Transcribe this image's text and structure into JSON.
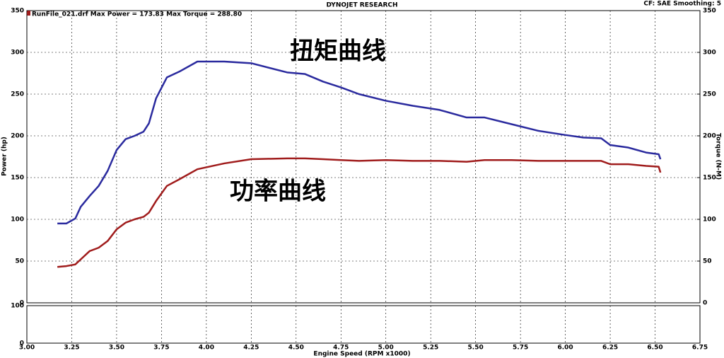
{
  "chart_data": {
    "type": "line",
    "title": "DYNOJET RESEARCH",
    "subtitle": "RunFile_021.drf Max Power = 173.83   Max Torque = 288.80",
    "settings_text": "CF: SAE  Smoothing: 5",
    "x_label": "Engine Speed (RPM x1000)",
    "y_label": "Power (hp)",
    "y2_label": "Torque (N-M)",
    "annotations": [
      "扭矩曲线",
      "功率曲线"
    ],
    "xlim": [
      3,
      6.75
    ],
    "xticks": [
      {
        "value": 3,
        "label": "3.00"
      },
      {
        "value": 3.25,
        "label": "3.25"
      },
      {
        "value": 3.5,
        "label": "3.50"
      },
      {
        "value": 3.75,
        "label": "3.75"
      },
      {
        "value": 4,
        "label": "4.00"
      },
      {
        "value": 4.25,
        "label": "4.25"
      },
      {
        "value": 4.5,
        "label": "4.50"
      },
      {
        "value": 4.75,
        "label": "4.75"
      },
      {
        "value": 5,
        "label": "5.00"
      },
      {
        "value": 5.25,
        "label": "5.25"
      },
      {
        "value": 5.5,
        "label": "5.50"
      },
      {
        "value": 5.75,
        "label": "5.75"
      },
      {
        "value": 6,
        "label": "6.00"
      },
      {
        "value": 6.25,
        "label": "6.25"
      },
      {
        "value": 6.5,
        "label": "6.50"
      },
      {
        "value": 6.75,
        "label": "6.75"
      }
    ],
    "ylim": [
      0,
      350
    ],
    "yticks": [
      0,
      50,
      100,
      150,
      200,
      250,
      300,
      350
    ],
    "y2lim": [
      0,
      350
    ],
    "y2ticks": [
      0,
      50,
      100,
      150,
      200,
      250,
      300,
      350
    ],
    "lower_ylim": [
      0,
      100
    ],
    "lower_yticks": [
      0,
      100
    ],
    "grid": true,
    "x": [
      3.17,
      3.22,
      3.27,
      3.3,
      3.35,
      3.4,
      3.45,
      3.5,
      3.55,
      3.6,
      3.65,
      3.68,
      3.72,
      3.78,
      3.85,
      3.95,
      4.1,
      4.25,
      4.45,
      4.55,
      4.65,
      4.75,
      4.85,
      5.0,
      5.15,
      5.3,
      5.45,
      5.55,
      5.7,
      5.85,
      6.0,
      6.1,
      6.2,
      6.25,
      6.35,
      6.45,
      6.52,
      6.53
    ],
    "series": [
      {
        "color": "#2a2a9e",
        "axis": "y2",
        "values": [
          95,
          95,
          101,
          115,
          128,
          140,
          158,
          183,
          196,
          200,
          205,
          215,
          245,
          270,
          277,
          289,
          289,
          287,
          276,
          274,
          265,
          258,
          250,
          242,
          236,
          231,
          222,
          222,
          214,
          206,
          201,
          198,
          197,
          189,
          186,
          180,
          178,
          172
        ]
      },
      {
        "color": "#a01c1c",
        "axis": "y",
        "values": [
          43,
          44,
          46,
          52,
          62,
          66,
          74,
          88,
          96,
          100,
          103,
          108,
          122,
          140,
          148,
          160,
          167,
          172,
          173,
          173,
          172,
          171,
          170,
          171,
          170,
          170,
          169,
          171,
          171,
          170,
          170,
          170,
          170,
          166,
          166,
          164,
          163,
          156
        ]
      }
    ]
  }
}
